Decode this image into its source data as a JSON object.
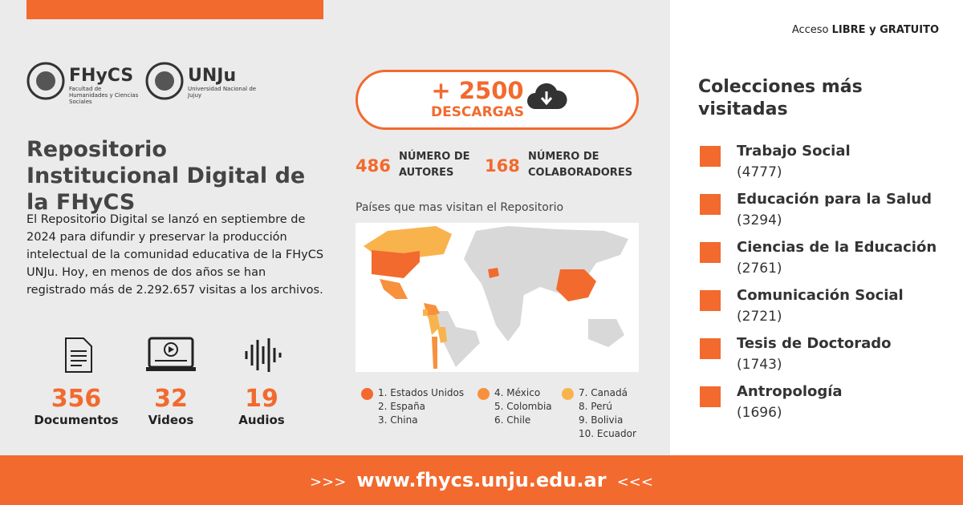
{
  "header": {
    "access_prefix": "Acceso",
    "access_bold": "LIBRE y GRATUITO"
  },
  "logos": {
    "fhycs": {
      "name": "FHyCS",
      "subtitle": "Facultad de Humanidades y Ciencias Sociales"
    },
    "unju": {
      "name": "UNJu",
      "subtitle": "Universidad Nacional de Jujuy"
    }
  },
  "title": "Repositorio Institucional Digital de la FHyCS",
  "description": "El Repositorio Digital se lanzó en septiembre de 2024 para difundir y preservar la producción intelectual de la comunidad educativa de la FHyCS UNJu. Hoy, en menos de dos años se han registrado más de 2.292.657 visitas a los archivos.",
  "media": [
    {
      "value": 356,
      "label": "Documentos"
    },
    {
      "value": 32,
      "label": "Videos"
    },
    {
      "value": 19,
      "label": "Audios"
    }
  ],
  "downloads": {
    "prefix": "+",
    "value": 2500,
    "label": "DESCARGAS"
  },
  "stats": [
    {
      "value": 486,
      "label": "NÚMERO DE AUTORES"
    },
    {
      "value": 168,
      "label": "NÚMERO DE COLABORADORES"
    }
  ],
  "map": {
    "caption": "Países que mas visitan el Repositorio",
    "legend": [
      {
        "color": "#f26a2e",
        "items": [
          "1. Estados Unidos",
          "2. España",
          "3. China"
        ]
      },
      {
        "color": "#f7913d",
        "items": [
          "4. México",
          "5. Colombia",
          "6. Chile"
        ]
      },
      {
        "color": "#f9b34d",
        "items": [
          "7. Canadá",
          "8. Perú",
          "9. Bolivia",
          "10. Ecuador"
        ]
      }
    ]
  },
  "collections": {
    "title": "Colecciones más visitadas",
    "items": [
      {
        "name": "Trabajo Social",
        "count": "(4777)"
      },
      {
        "name": "Educación para la Salud",
        "count": "(3294)"
      },
      {
        "name": "Ciencias de la Educación",
        "count": "(2761)"
      },
      {
        "name": "Comunicación Social",
        "count": "(2721)"
      },
      {
        "name": "Tesis de Doctorado",
        "count": "(1743)"
      },
      {
        "name": "Antropología",
        "count": "(1696)"
      }
    ]
  },
  "footer": {
    "prefix": ">>>",
    "url": "www.fhycs.unju.edu.ar",
    "suffix": "<<<"
  }
}
